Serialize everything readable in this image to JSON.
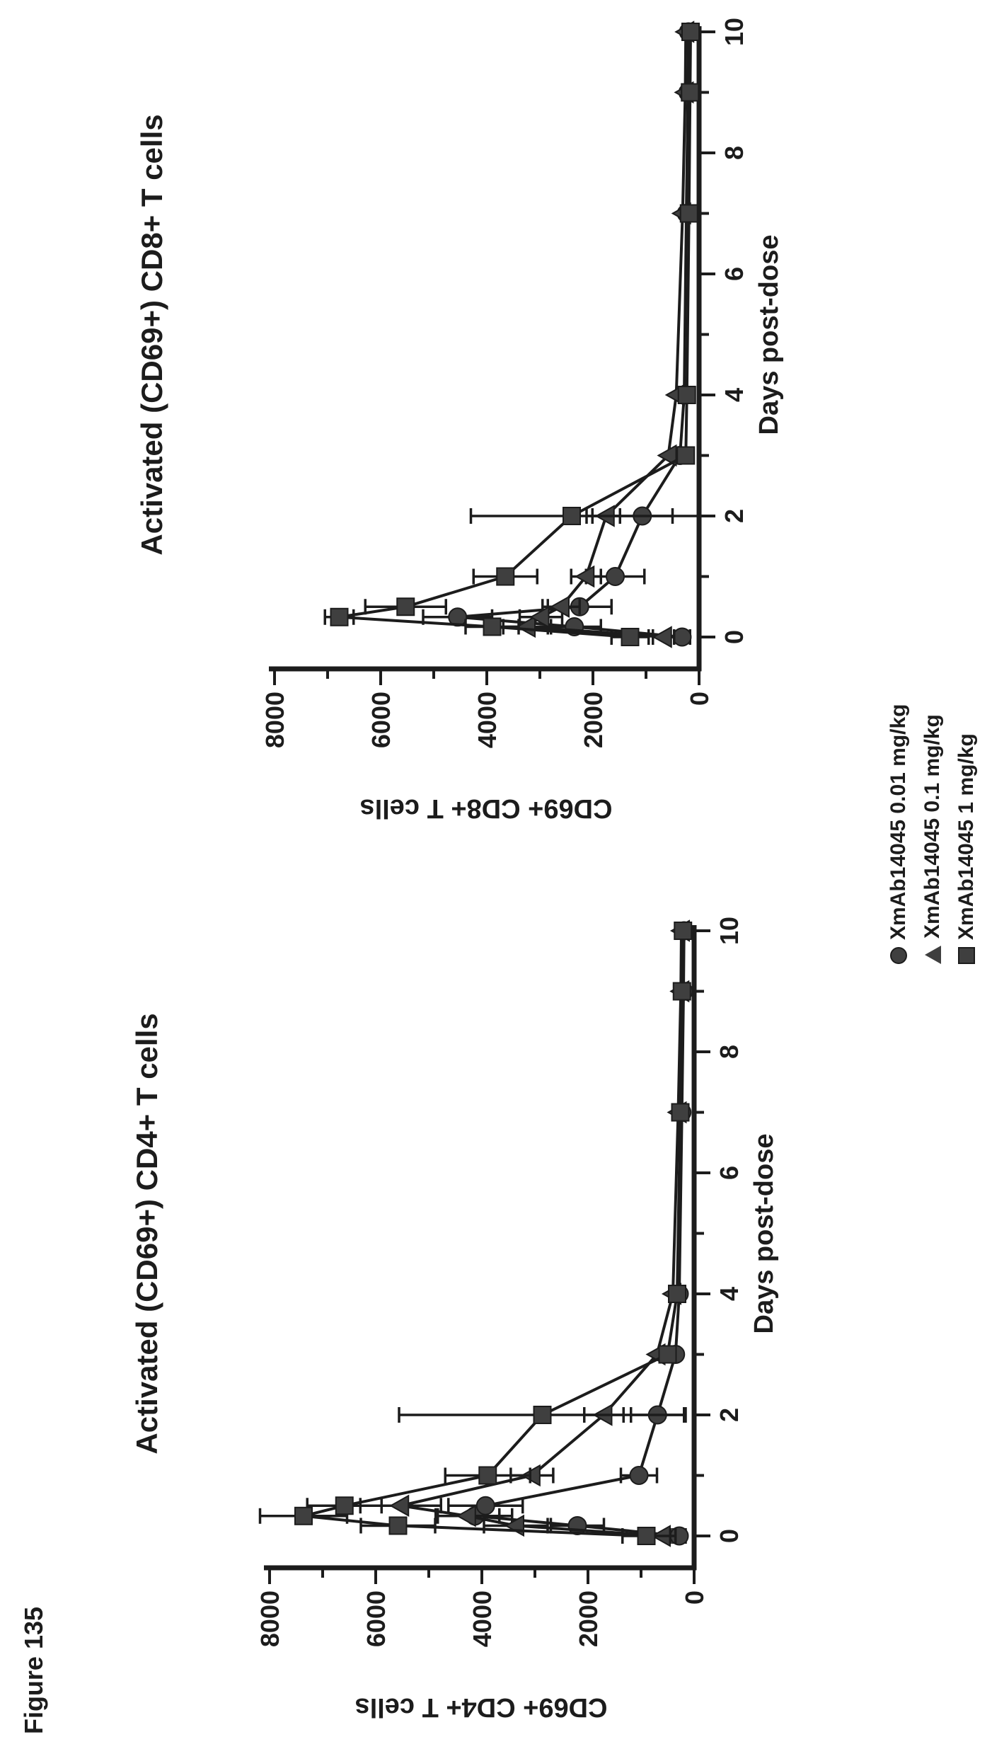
{
  "figure_label": "Figure 135",
  "colors": {
    "ink": "#1c1c1c",
    "marker_fill": "#3f3f3f",
    "background": "#ffffff"
  },
  "legend": {
    "items": [
      {
        "marker": "circle",
        "label": "XmAb14045 0.01 mg/kg"
      },
      {
        "marker": "triangle",
        "label": "XmAb14045 0.1 mg/kg"
      },
      {
        "marker": "square",
        "label": "XmAb14045 1 mg/kg"
      }
    ]
  },
  "chart_data": [
    {
      "type": "line",
      "position": "top",
      "title": "Activated (CD69+) CD8+ T cells",
      "xlabel": "Days post-dose",
      "ylabel": "CD69+ CD8+ T cells",
      "xlim": [
        0,
        10
      ],
      "ylim": [
        0,
        8000
      ],
      "xticks": [
        0,
        2,
        4,
        6,
        8,
        10
      ],
      "yticks": [
        0,
        2000,
        4000,
        6000,
        8000
      ],
      "x": [
        0,
        0.17,
        0.33,
        0.5,
        1,
        2,
        3,
        4,
        7,
        9,
        10
      ],
      "series": [
        {
          "name": "XmAb14045 0.01 mg/kg",
          "marker": "circle",
          "values": [
            320,
            2350,
            4550,
            2250,
            1580,
            1070,
            360,
            280,
            240,
            210,
            200
          ],
          "errors": [
            150,
            500,
            650,
            600,
            550,
            1050,
            0,
            0,
            0,
            0,
            0
          ]
        },
        {
          "name": "XmAb14045 0.1 mg/kg",
          "marker": "triangle",
          "values": [
            670,
            3240,
            2980,
            2600,
            2130,
            1750,
            580,
            430,
            310,
            260,
            250
          ],
          "errors": [
            200,
            450,
            400,
            350,
            280,
            260,
            0,
            0,
            0,
            0,
            0
          ]
        },
        {
          "name": "XmAb14045 1 mg/kg",
          "marker": "square",
          "values": [
            1300,
            3900,
            6780,
            5530,
            3650,
            2400,
            250,
            230,
            190,
            170,
            160
          ],
          "errors": [
            350,
            500,
            270,
            760,
            600,
            1900,
            0,
            0,
            0,
            0,
            0
          ]
        }
      ]
    },
    {
      "type": "line",
      "position": "bottom",
      "title": "Activated (CD69+) CD4+ T cells",
      "xlabel": "Days post-dose",
      "ylabel": "CD69+ CD4+ T cells",
      "xlim": [
        0,
        10
      ],
      "ylim": [
        0,
        8000
      ],
      "xticks": [
        0,
        2,
        4,
        6,
        8,
        10
      ],
      "yticks": [
        0,
        2000,
        4000,
        6000,
        8000
      ],
      "x": [
        0,
        0.17,
        0.33,
        0.5,
        1,
        2,
        3,
        4,
        7,
        9,
        10
      ],
      "series": [
        {
          "name": "XmAb14045 0.01 mg/kg",
          "marker": "circle",
          "values": [
            280,
            2200,
            4130,
            3930,
            1040,
            690,
            350,
            280,
            230,
            200,
            190
          ],
          "errors": [
            120,
            500,
            700,
            700,
            340,
            500,
            0,
            0,
            0,
            0,
            0
          ]
        },
        {
          "name": "XmAb14045 0.1 mg/kg",
          "marker": "triangle",
          "values": [
            600,
            3360,
            4270,
            5530,
            3055,
            1700,
            700,
            400,
            300,
            250,
            240
          ],
          "errors": [
            250,
            600,
            600,
            760,
            400,
            370,
            0,
            0,
            0,
            0,
            0
          ]
        },
        {
          "name": "XmAb14045 1 mg/kg",
          "marker": "square",
          "values": [
            900,
            5580,
            7360,
            6590,
            3890,
            2860,
            500,
            320,
            260,
            230,
            210
          ],
          "errors": [
            450,
            700,
            820,
            700,
            800,
            2700,
            0,
            0,
            0,
            0,
            0
          ]
        }
      ]
    }
  ]
}
